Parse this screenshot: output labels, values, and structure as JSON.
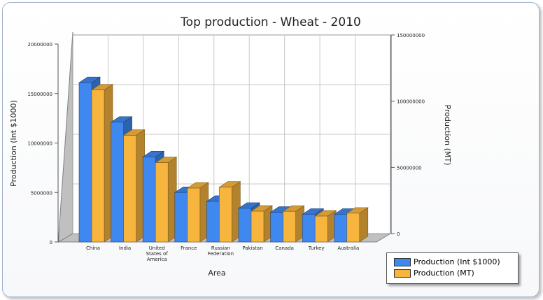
{
  "chart_data": {
    "type": "bar",
    "title": "Top production - Wheat - 2010",
    "xlabel": "Area",
    "ylabel": "Production (Int $1000)",
    "y2label": "Production (MT)",
    "categories": [
      "China",
      "India",
      "United States of America",
      "France",
      "Russian Federation",
      "Pakistan",
      "Canada",
      "Turkey",
      "Australia"
    ],
    "series": [
      {
        "name": "Production (Int $1000)",
        "axis": "left",
        "color": "#3f88f0",
        "values": [
          16100000,
          12100000,
          8600000,
          5000000,
          4100000,
          3400000,
          3000000,
          2800000,
          2800000
        ]
      },
      {
        "name": "Production (MT)",
        "axis": "right",
        "color": "#f8b53e",
        "values": [
          115200000,
          80800000,
          60100000,
          40800000,
          41500000,
          23300000,
          23200000,
          19600000,
          21800000
        ]
      }
    ],
    "ylim": [
      0,
      20000000
    ],
    "y2lim": [
      0,
      150000000
    ],
    "yticks": [
      "0",
      "5000000",
      "10000000",
      "15000000",
      "20000000"
    ],
    "y2ticks": [
      "0",
      "50000000",
      "100000000",
      "150000000"
    ],
    "grid": true,
    "legend_position": "bottom-right"
  }
}
